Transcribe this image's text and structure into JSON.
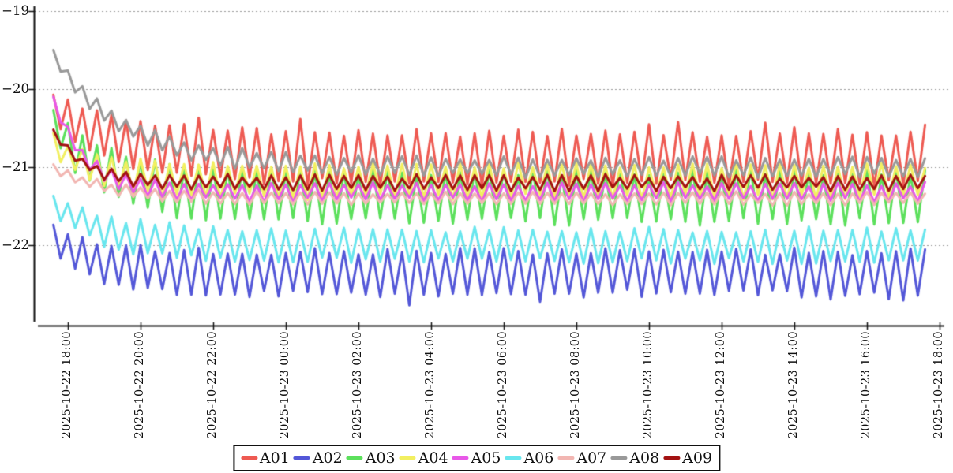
{
  "chart_data": {
    "type": "line",
    "title": "",
    "background_color": "#ffffff",
    "axis_color": "#111111",
    "grid_color": "#999999",
    "grid_style": "dotted-horizontal",
    "legend_position": "bottom-center",
    "y_axis": {
      "tick_labels": [
        "−19",
        "−20",
        "−21",
        "−22"
      ],
      "tick_values": [
        -19,
        -20,
        -21,
        -22
      ],
      "range": [
        -23.0,
        -18.94
      ]
    },
    "x_axis": {
      "tick_hours": [
        0,
        2,
        4,
        6,
        8,
        10,
        12,
        14,
        16,
        18,
        20,
        22,
        24
      ],
      "tick_labels": [
        "2025-10-22 18:00",
        "2025-10-22 20:00",
        "2025-10-22 22:00",
        "2025-10-23 00:00",
        "2025-10-23 02:00",
        "2025-10-23 04:00",
        "2025-10-23 06:00",
        "2025-10-23 08:00",
        "2025-10-23 10:00",
        "2025-10-23 12:00",
        "2025-10-23 14:00",
        "2025-10-23 16:00",
        "2025-10-23 18:00"
      ]
    },
    "time_start_hours": -0.4,
    "time_end_hours": 23.7,
    "sample_step_hours": 0.2,
    "oscillation_period_hours": 0.4,
    "series": [
      {
        "name": "A01",
        "color": "#ee5a52",
        "start": -20.25,
        "center": -20.88,
        "amplitude": 0.32,
        "decay_tau_hours": 1.8,
        "noise": 0.05,
        "seed": 11,
        "spike_prob": 0.1,
        "spike_size": 0.12,
        "dip_prob": 0,
        "dip_size": 0
      },
      {
        "name": "A02",
        "color": "#5357d8",
        "start": -21.9,
        "center": -22.35,
        "amplitude": 0.27,
        "decay_tau_hours": 1.2,
        "noise": 0.05,
        "seed": 22,
        "spike_prob": 0,
        "spike_size": 0,
        "dip_prob": 0.1,
        "dip_size": 0.1
      },
      {
        "name": "A03",
        "color": "#5ce05c",
        "start": -20.45,
        "center": -21.38,
        "amplitude": 0.32,
        "decay_tau_hours": 1.4,
        "noise": 0.05,
        "seed": 33,
        "spike_prob": 0,
        "spike_size": 0,
        "dip_prob": 0,
        "dip_size": 0
      },
      {
        "name": "A04",
        "color": "#f2ef60",
        "start": -20.7,
        "center": -21.18,
        "amplitude": 0.2,
        "decay_tau_hours": 1.1,
        "noise": 0.04,
        "seed": 44,
        "spike_prob": 0,
        "spike_size": 0,
        "dip_prob": 0,
        "dip_size": 0
      },
      {
        "name": "A05",
        "color": "#e858e8",
        "start": -20.15,
        "center": -21.32,
        "amplitude": 0.1,
        "decay_tau_hours": 0.9,
        "noise": 0.03,
        "seed": 55,
        "spike_prob": 0,
        "spike_size": 0,
        "dip_prob": 0,
        "dip_size": 0
      },
      {
        "name": "A06",
        "color": "#68e6ee",
        "start": -21.45,
        "center": -22.0,
        "amplitude": 0.2,
        "decay_tau_hours": 1.4,
        "noise": 0.04,
        "seed": 66,
        "spike_prob": 0,
        "spike_size": 0,
        "dip_prob": 0,
        "dip_size": 0
      },
      {
        "name": "A07",
        "color": "#f2b6b2",
        "start": -21.0,
        "center": -21.4,
        "amplitude": 0.07,
        "decay_tau_hours": 1.4,
        "noise": 0.02,
        "seed": 77,
        "spike_prob": 0,
        "spike_size": 0,
        "dip_prob": 0,
        "dip_size": 0
      },
      {
        "name": "A08",
        "color": "#999999",
        "start": -19.58,
        "center": -21.0,
        "amplitude": 0.11,
        "decay_tau_hours": 2.0,
        "noise": 0.03,
        "seed": 88,
        "spike_prob": 0,
        "spike_size": 0,
        "dip_prob": 0,
        "dip_size": 0
      },
      {
        "name": "A09",
        "color": "#a31212",
        "start": -20.55,
        "center": -21.2,
        "amplitude": 0.08,
        "decay_tau_hours": 0.9,
        "noise": 0.03,
        "seed": 99,
        "spike_prob": 0,
        "spike_size": 0,
        "dip_prob": 0,
        "dip_size": 0
      }
    ]
  }
}
